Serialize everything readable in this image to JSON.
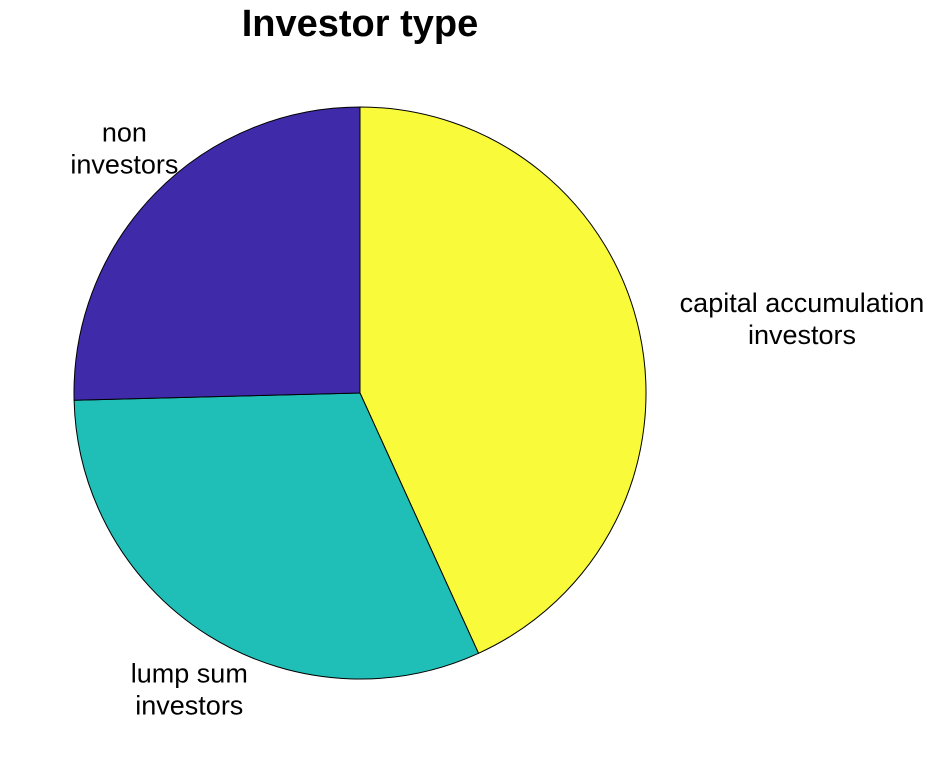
{
  "chart_data": {
    "type": "pie",
    "title": "Investor type",
    "start_angle_deg": 90,
    "direction": "clockwise",
    "slices": [
      {
        "label": "capital accumulation investors",
        "label_lines": [
          "capital accumulation",
          "investors"
        ],
        "value": 43.2,
        "color": "#f8fa3a"
      },
      {
        "label": "lump sum investors",
        "label_lines": [
          "lump sum",
          "investors"
        ],
        "value": 31.4,
        "color": "#1fbfb8"
      },
      {
        "label": "non investors",
        "label_lines": [
          "non",
          "investors"
        ],
        "value": 25.4,
        "color": "#3f2aaa"
      }
    ],
    "legend": "none"
  }
}
